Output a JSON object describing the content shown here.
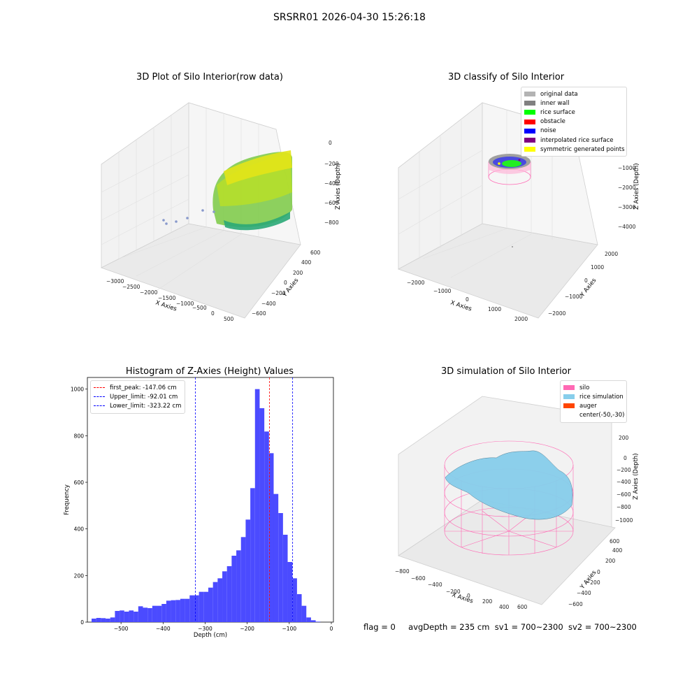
{
  "figure_title": "SRSRR01 2026-04-30 15:26:18",
  "footer": {
    "flag": "flag = 0",
    "avg_depth": "avgDepth = 235 cm",
    "sv1": "sv1 = 700~2300",
    "sv2": "sv2 = 700~2300"
  },
  "colors": {
    "histogram_bars": "#4b4bff",
    "silo": "#ff69b4",
    "rice_simulation": "#87ceeb",
    "auger": "#ff4500",
    "original_data": "#b3b3b3",
    "inner_wall": "#808080",
    "rice_surface": "#00ff00",
    "obstacle": "#ff0000",
    "noise": "#0000ff",
    "interpolated_rice_surface": "#800080",
    "symmetric_generated_points": "#ffff00"
  },
  "chart_data": [
    {
      "type": "scatter3d",
      "title": "3D Plot of Silo Interior(row data)",
      "xlabel": "X Axies",
      "ylabel": "Y Axies",
      "zlabel": "Z Axies (Depth)",
      "x_ticks": [
        "−3000",
        "−2500",
        "−2000",
        "−1500",
        "−1000",
        "−500",
        "0",
        "500"
      ],
      "y_ticks": [
        "−600",
        "−400",
        "−200",
        "0",
        "200",
        "400",
        "600"
      ],
      "z_ticks": [
        "0",
        "−200",
        "−400",
        "−600",
        "−800"
      ],
      "colormap": "viridis"
    },
    {
      "type": "scatter3d",
      "title": "3D classify of Silo Interior",
      "xlabel": "X Axies",
      "ylabel": "Y Axies",
      "zlabel": "Z Axies (Depth)",
      "x_ticks": [
        "−2000",
        "−1000",
        "0",
        "1000",
        "2000"
      ],
      "y_ticks": [
        "−2000",
        "−1000",
        "0",
        "1000",
        "2000"
      ],
      "z_ticks": [
        "−1000",
        "−2000",
        "−3000",
        "−4000"
      ],
      "legend": [
        "original data",
        "inner wall",
        "rice surface",
        "obstacle",
        "noise",
        "interpolated rice surface",
        "symmetric generated points"
      ],
      "legend_position": "top-right"
    },
    {
      "type": "bar",
      "title": "Histogram of Z-Axies (Height) Values",
      "xlabel": "Depth (cm)",
      "ylabel": "Frequency",
      "xlim": [
        -580,
        5
      ],
      "ylim": [
        0,
        1050
      ],
      "x_ticks": [
        -500,
        -400,
        -300,
        -200,
        -100,
        0
      ],
      "x_tick_labels": [
        "−500",
        "−400",
        "−300",
        "−200",
        "−100",
        "0"
      ],
      "y_ticks": [
        0,
        200,
        400,
        600,
        800,
        1000
      ],
      "y_tick_labels": [
        "0",
        "200",
        "400",
        "600",
        "800",
        "1000"
      ],
      "bin_start": -570,
      "bin_width": 11.1,
      "values": [
        15,
        18,
        17,
        15,
        20,
        48,
        50,
        45,
        50,
        45,
        68,
        62,
        60,
        70,
        70,
        78,
        92,
        94,
        95,
        100,
        100,
        115,
        115,
        130,
        130,
        148,
        172,
        188,
        218,
        240,
        285,
        308,
        365,
        440,
        575,
        1000,
        918,
        818,
        725,
        550,
        468,
        375,
        258,
        188,
        120,
        70,
        20,
        8,
        2
      ],
      "lines": [
        {
          "label": "first_peak: -147.06 cm",
          "x": -147.06,
          "color": "#ff0000"
        },
        {
          "label": "Upper_limit: -92.01 cm",
          "x": -92.01,
          "color": "#0000ff"
        },
        {
          "label": "Lower_limit: -323.22 cm",
          "x": -323.22,
          "color": "#0000ff"
        }
      ],
      "legend_position": "top-left"
    },
    {
      "type": "surface3d",
      "title": "3D simulation of Silo Interior",
      "xlabel": "X Axies",
      "ylabel": "Y Axies",
      "zlabel": "Z Axies (Depth)",
      "x_ticks": [
        "−800",
        "−600",
        "−400",
        "−200",
        "0",
        "200",
        "400",
        "600"
      ],
      "y_ticks": [
        "−600",
        "−400",
        "−200",
        "0",
        "200",
        "400",
        "600"
      ],
      "z_ticks": [
        "200",
        "0",
        "−200",
        "−400",
        "−600",
        "−800",
        "−1000"
      ],
      "legend": [
        "silo",
        "rice simulation",
        "auger",
        "center(-50,-30)"
      ],
      "legend_position": "top-right"
    }
  ]
}
